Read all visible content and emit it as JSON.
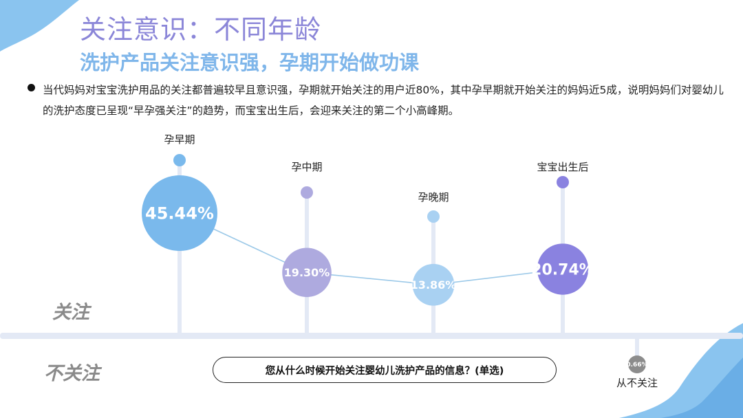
{
  "header": {
    "title": "关注意识：不同年龄",
    "subtitle": "洗护产品关注意识强，孕期开始做功课"
  },
  "description": "当代妈妈对宝宝洗护用品的关注都普遍较早且意识强，孕期就开始关注的用户近80%，其中孕早期就开始关注的妈妈近5成，说明妈妈们对婴幼儿的洗护态度已呈现“早孕强关注”的趋势，而宝宝出生后，会迎来关注的第二个小高峰期。",
  "zones": {
    "attention": "关注",
    "no_attention": "不关注"
  },
  "question": "您从什么时候开始关注婴幼儿洗护产品的信息？(单选)",
  "colors": {
    "blue": "#7ab9ec",
    "lilac": "#aeaadf",
    "light_blue": "#a9d1f2",
    "purple": "#8a82e0",
    "gray": "#8c8c8c",
    "line": "#9cc9e8",
    "stem": "#e3e9f5"
  },
  "chart_data": {
    "type": "bubble",
    "categories": [
      "孕早期",
      "孕中期",
      "孕晚期",
      "宝宝出生后",
      "从不关注"
    ],
    "values": [
      45.44,
      19.3,
      13.86,
      20.74,
      0.66
    ],
    "labels": [
      "45.44%",
      "19.30%",
      "13.86%",
      "20.74%",
      "0.66%"
    ],
    "groups": [
      "关注",
      "关注",
      "关注",
      "关注",
      "不关注"
    ],
    "unit": "%"
  }
}
